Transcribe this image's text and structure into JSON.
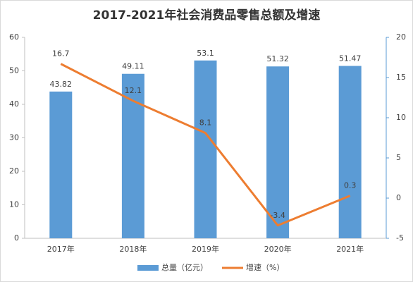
{
  "chart_data": {
    "type": "bar",
    "title": "2017-2021年社会消费品零售总额及增速",
    "categories": [
      "2017年",
      "2018年",
      "2019年",
      "2020年",
      "2021年"
    ],
    "series": [
      {
        "name": "总量（亿元）",
        "type": "bar",
        "color": "#5b9bd5",
        "values": [
          43.82,
          49.11,
          53.1,
          51.32,
          51.47
        ]
      },
      {
        "name": "增速（%）",
        "type": "line",
        "axis": "y2",
        "color": "#ed7d31",
        "values": [
          16.7,
          12.1,
          8.1,
          -3.4,
          0.3
        ]
      }
    ],
    "ylim": [
      0,
      60
    ],
    "yticks": [
      0,
      10,
      20,
      30,
      40,
      50,
      60
    ],
    "y2lim": [
      -5,
      20
    ],
    "y2ticks": [
      -5,
      0,
      5,
      10,
      15,
      20
    ],
    "grid": false,
    "legend": "bottom"
  }
}
